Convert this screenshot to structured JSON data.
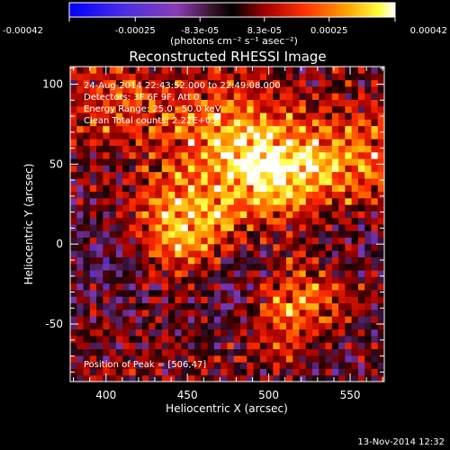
{
  "chart_data": {
    "type": "heatmap",
    "title": "Reconstructed RHESSI Image",
    "xlabel": "Heliocentric X (arcsec)",
    "ylabel": "Heliocentric Y (arcsec)",
    "xlim": [
      378,
      571
    ],
    "ylim": [
      -86,
      111
    ],
    "x_ticks": [
      400,
      450,
      500,
      550
    ],
    "y_ticks": [
      -50,
      0,
      50,
      100
    ],
    "colorbar": {
      "ticks": [
        "-0.00042",
        "-0.00025",
        "-8.3e-05",
        "8.3e-05",
        "0.00025",
        "0.00042"
      ],
      "tick_values": [
        -0.00042,
        -0.00025,
        -8.3e-05,
        8.3e-05,
        0.00025,
        0.00042
      ],
      "range": [
        -0.00042,
        0.00042
      ],
      "unit_label": "(photons cm⁻² s⁻¹ asec⁻²)"
    },
    "annotations": [
      "24-Aug-2014 22:43:52.000 to 22:49:08.000",
      "Detectors: 3F 6F 9F, Att 0",
      "Energy Range: 25.0 - 50.0 keV",
      "Clean    Total counts: 2.22E+03"
    ],
    "peak_label": "Position of Peak = [506,47]",
    "peak_position": [
      506,
      47
    ],
    "bright_regions": [
      {
        "x": 450,
        "y": 12,
        "intensity": 0.00039
      },
      {
        "x": 506,
        "y": 47,
        "intensity": 0.00042
      },
      {
        "x": 520,
        "y": -40,
        "intensity": 0.00033
      },
      {
        "x": 470,
        "y": 70,
        "intensity": 0.00025
      },
      {
        "x": 410,
        "y": 90,
        "intensity": 0.00017
      },
      {
        "x": 555,
        "y": 50,
        "intensity": 0.00025
      }
    ],
    "dark_regions": [
      {
        "x": 480,
        "y": -20,
        "intensity": -0.00018
      },
      {
        "x": 540,
        "y": -60,
        "intensity": -0.00014
      },
      {
        "x": 400,
        "y": -10,
        "intensity": -0.00012
      },
      {
        "x": 545,
        "y": 5,
        "intensity": -0.00011
      }
    ]
  },
  "footer_date": "13-Nov-2014 12:32"
}
